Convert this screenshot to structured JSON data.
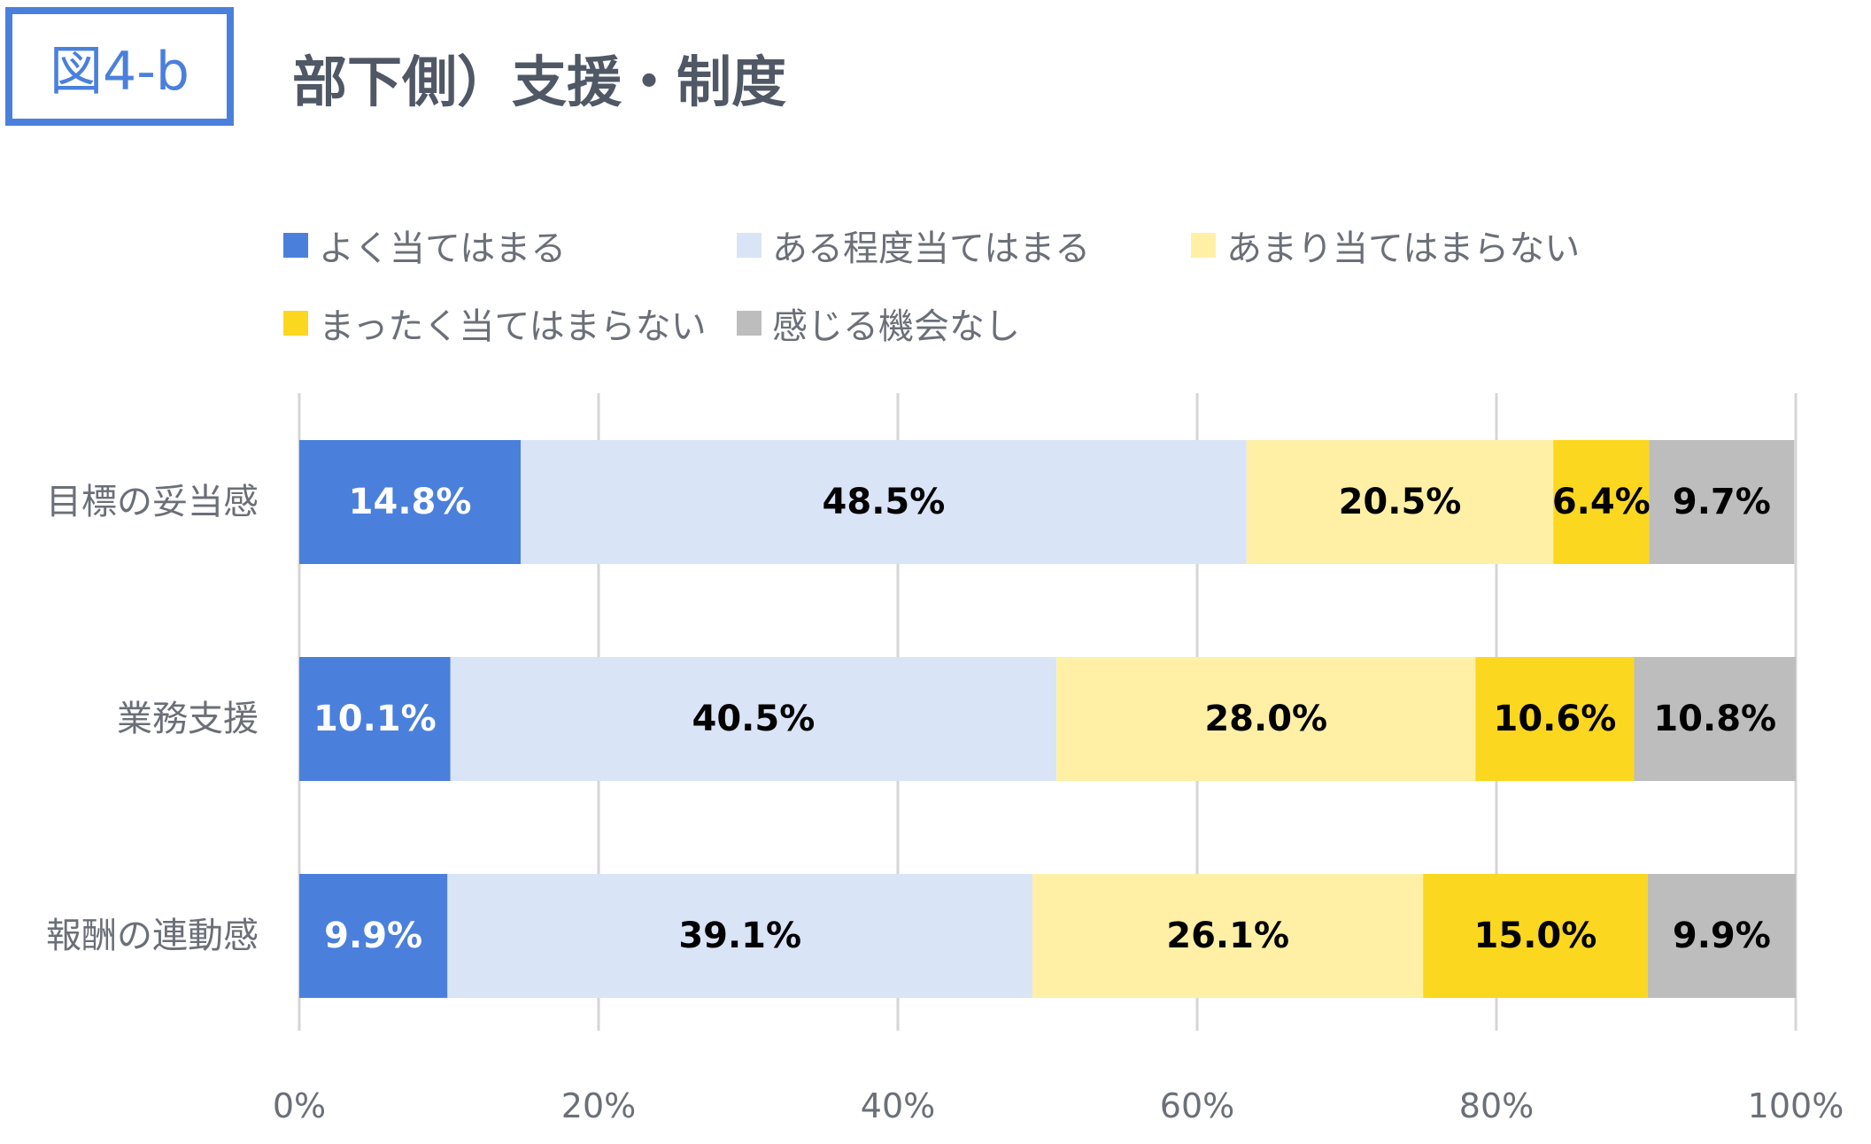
{
  "figure_label": "図4-b",
  "title": "部下側）支援・制度",
  "colors": {
    "accent": "#4a80dc",
    "grid": "#d6d6d6",
    "axis_text": "#6b6f78"
  },
  "chart_data": {
    "type": "bar",
    "orientation": "horizontal",
    "stacked": true,
    "percent_stacked": true,
    "categories": [
      "目標の妥当感",
      "業務支援",
      "報酬の連動感"
    ],
    "series": [
      {
        "name": "よく当てはまる",
        "color": "#4a80dc",
        "label_color": "#ffffff",
        "values": [
          14.8,
          10.1,
          9.9
        ]
      },
      {
        "name": "ある程度当てはまる",
        "color": "#dae4f7",
        "label_color": "#000000",
        "values": [
          48.5,
          40.5,
          39.1
        ]
      },
      {
        "name": "あまり当てはまらない",
        "color": "#fff0a6",
        "label_color": "#000000",
        "values": [
          20.5,
          28.0,
          26.1
        ]
      },
      {
        "name": "まったく当てはまらない",
        "color": "#fbd71f",
        "label_color": "#000000",
        "values": [
          6.4,
          10.6,
          15.0
        ]
      },
      {
        "name": "感じる機会なし",
        "color": "#bdbdbd",
        "label_color": "#000000",
        "values": [
          9.7,
          10.8,
          9.9
        ]
      }
    ],
    "data_labels": [
      [
        "14.8%",
        "10.1%",
        "9.9%"
      ],
      [
        "48.5%",
        "40.5%",
        "39.1%"
      ],
      [
        "20.5%",
        "28.0%",
        "26.1%"
      ],
      [
        "6.4%",
        "10.6%",
        "15.0%"
      ],
      [
        "9.7%",
        "10.8%",
        "9.9%"
      ]
    ],
    "x_ticks": [
      0,
      20,
      40,
      60,
      80,
      100
    ],
    "x_tick_labels": [
      "0%",
      "20%",
      "40%",
      "60%",
      "80%",
      "100%"
    ],
    "xlim": [
      0,
      100
    ],
    "grid": true,
    "legend_position": "top"
  }
}
